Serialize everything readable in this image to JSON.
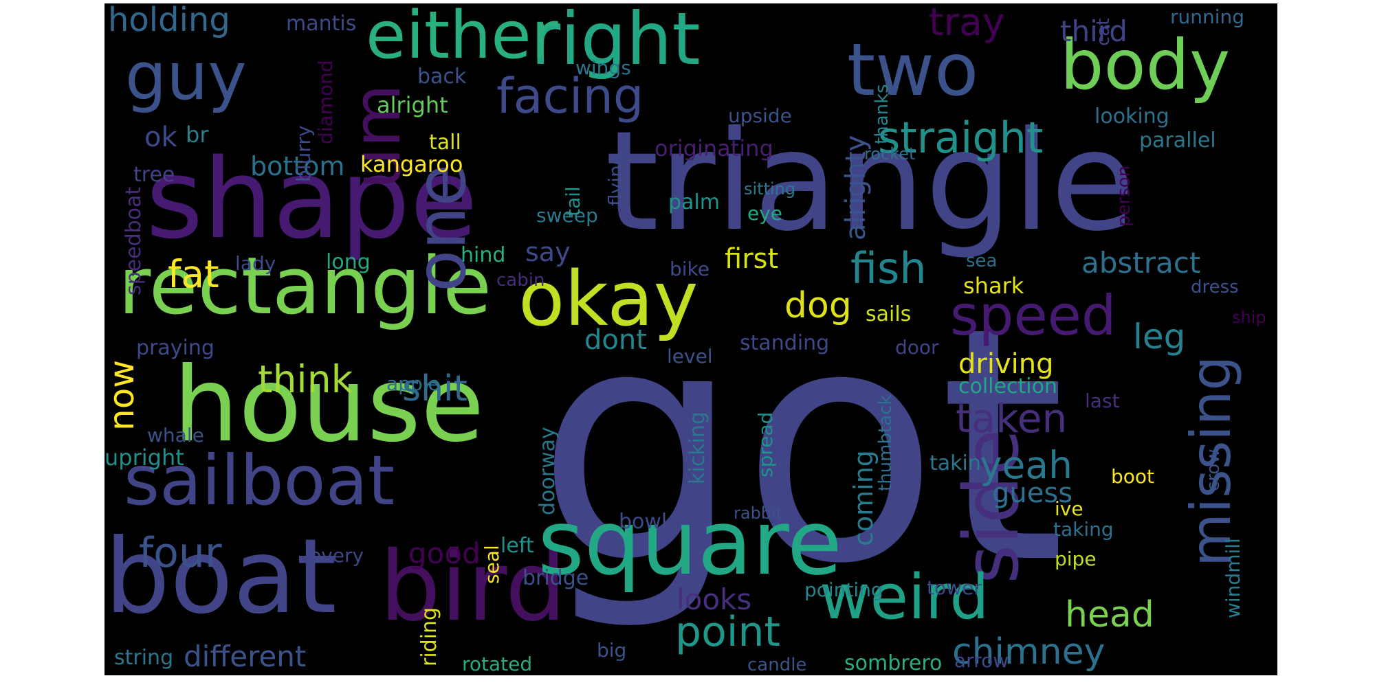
{
  "words": [
    {
      "t": "got",
      "c": "#414487"
    },
    {
      "t": "triangle",
      "c": "#414487"
    },
    {
      "t": "shape",
      "c": "#471a72"
    },
    {
      "t": "house",
      "c": "#7ad151"
    },
    {
      "t": "boat",
      "c": "#414487"
    },
    {
      "t": "bird",
      "c": "#440f5c"
    },
    {
      "t": "square",
      "c": "#22a884"
    },
    {
      "t": "rectangle",
      "c": "#7ad151"
    },
    {
      "t": "okay",
      "c": "#c2df23"
    },
    {
      "t": "sailboat",
      "c": "#414487"
    },
    {
      "t": "one",
      "c": "#414487"
    },
    {
      "t": "right",
      "c": "#22a884"
    },
    {
      "t": "either",
      "c": "#2ab07f"
    },
    {
      "t": "two",
      "c": "#3b528b"
    },
    {
      "t": "body",
      "c": "#6ece58"
    },
    {
      "t": "guy",
      "c": "#3b528b"
    },
    {
      "t": "um",
      "c": "#440f5c"
    },
    {
      "t": "side",
      "c": "#46307e"
    },
    {
      "t": "weird",
      "c": "#1fa188"
    },
    {
      "t": "speed",
      "c": "#471a72"
    },
    {
      "t": "missing",
      "c": "#3b528b"
    },
    {
      "t": "facing",
      "c": "#3e4a89"
    },
    {
      "t": "straight",
      "c": "#21918c"
    },
    {
      "t": "fish",
      "c": "#25858e"
    },
    {
      "t": "four",
      "c": "#3b528b"
    },
    {
      "t": "point",
      "c": "#1f988b"
    },
    {
      "t": "chimney",
      "c": "#2c718e"
    },
    {
      "t": "taken",
      "c": "#46307e"
    },
    {
      "t": "think",
      "c": "#a5db36"
    },
    {
      "t": "shit",
      "c": "#31688e"
    },
    {
      "t": "yeah",
      "c": "#2a788e"
    },
    {
      "t": "head",
      "c": "#7ad151"
    },
    {
      "t": "dog",
      "c": "#dde318"
    },
    {
      "t": "fat",
      "c": "#fde725"
    },
    {
      "t": "abstract",
      "c": "#2c718e"
    },
    {
      "t": "leg",
      "c": "#26828e"
    },
    {
      "t": "driving",
      "c": "#e5e419"
    },
    {
      "t": "tray",
      "c": "#440154"
    },
    {
      "t": "holding",
      "c": "#31688e"
    },
    {
      "t": "third",
      "c": "#404387"
    },
    {
      "t": "ok",
      "c": "#3e4a89"
    },
    {
      "t": "br",
      "c": "#26828e"
    },
    {
      "t": "bottom",
      "c": "#2d708e"
    },
    {
      "t": "first",
      "c": "#d8e219"
    },
    {
      "t": "now",
      "c": "#fde725"
    },
    {
      "t": "dont",
      "c": "#24878e"
    },
    {
      "t": "good",
      "c": "#440154"
    },
    {
      "t": "looks",
      "c": "#472f7d"
    },
    {
      "t": "different",
      "c": "#3b528b"
    },
    {
      "t": "guess",
      "c": "#2c718e"
    },
    {
      "t": "coming",
      "c": "#287c8e"
    },
    {
      "t": "say",
      "c": "#3e4a89"
    },
    {
      "t": "alrighty",
      "c": "#3b528b"
    },
    {
      "t": "collection",
      "c": "#22a884"
    },
    {
      "t": "mantis",
      "c": "#3e4a89"
    },
    {
      "t": "wings",
      "c": "#2a788e"
    },
    {
      "t": "back",
      "c": "#3b528b"
    },
    {
      "t": "alright",
      "c": "#63cb5f"
    },
    {
      "t": "upside",
      "c": "#3b528b"
    },
    {
      "t": "looking",
      "c": "#2c718e"
    },
    {
      "t": "running",
      "c": "#30698e"
    },
    {
      "t": "originating",
      "c": "#482071"
    },
    {
      "t": "tall",
      "c": "#dde318"
    },
    {
      "t": "kangaroo",
      "c": "#fde725"
    },
    {
      "t": "tree",
      "c": "#404387"
    },
    {
      "t": "parallel",
      "c": "#2a788e"
    },
    {
      "t": "rocket",
      "c": "#2d708e"
    },
    {
      "t": "sitting",
      "c": "#2a788e"
    },
    {
      "t": "palm",
      "c": "#20928c"
    },
    {
      "t": "eye",
      "c": "#22a884"
    },
    {
      "t": "sweep",
      "c": "#287c8e"
    },
    {
      "t": "tail",
      "c": "#20928c"
    },
    {
      "t": "flying",
      "c": "#3e4a89"
    },
    {
      "t": "blurry",
      "c": "#3e4a89"
    },
    {
      "t": "diamond",
      "c": "#440154"
    },
    {
      "t": "thanks",
      "c": "#25858e"
    },
    {
      "t": "cat",
      "c": "#404387"
    },
    {
      "t": "speedboat",
      "c": "#472d7b"
    },
    {
      "t": "lady",
      "c": "#3e4a89"
    },
    {
      "t": "long",
      "c": "#22a884"
    },
    {
      "t": "hind",
      "c": "#2ab07f"
    },
    {
      "t": "cabin",
      "c": "#472d7b"
    },
    {
      "t": "bike",
      "c": "#3e4a89"
    },
    {
      "t": "sea",
      "c": "#2c718e"
    },
    {
      "t": "shark",
      "c": "#e5e419"
    },
    {
      "t": "dress",
      "c": "#3b528b"
    },
    {
      "t": "ship",
      "c": "#440154"
    },
    {
      "t": "sails",
      "c": "#d2e21b"
    },
    {
      "t": "standing",
      "c": "#3f4889"
    },
    {
      "t": "door",
      "c": "#404387"
    },
    {
      "t": "level",
      "c": "#3b528b"
    },
    {
      "t": "praying",
      "c": "#3e4a89"
    },
    {
      "t": "apple",
      "c": "#2c718e"
    },
    {
      "t": "person",
      "c": "#440154"
    },
    {
      "t": "last",
      "c": "#472f7d"
    },
    {
      "t": "whale",
      "c": "#3b528b"
    },
    {
      "t": "upright",
      "c": "#21918c"
    },
    {
      "t": "doorway",
      "c": "#2a788e"
    },
    {
      "t": "kicking",
      "c": "#2a788e"
    },
    {
      "t": "thumbtack",
      "c": "#2c718e"
    },
    {
      "t": "spread",
      "c": "#20928c"
    },
    {
      "t": "takin",
      "c": "#2a788e"
    },
    {
      "t": "boot",
      "c": "#fde725"
    },
    {
      "t": "crow",
      "c": "#3b528b"
    },
    {
      "t": "ive",
      "c": "#e5e419"
    },
    {
      "t": "rabbit",
      "c": "#3b528b"
    },
    {
      "t": "bowl",
      "c": "#3e4a89"
    },
    {
      "t": "taking",
      "c": "#2c718e"
    },
    {
      "t": "every",
      "c": "#3f4889"
    },
    {
      "t": "left",
      "c": "#21918c"
    },
    {
      "t": "seal",
      "c": "#fde725"
    },
    {
      "t": "pipe",
      "c": "#c2df23"
    },
    {
      "t": "bridge",
      "c": "#3b528b"
    },
    {
      "t": "windmill",
      "c": "#287c8e"
    },
    {
      "t": "pointing",
      "c": "#25858e"
    },
    {
      "t": "tower",
      "c": "#3e4a89"
    },
    {
      "t": "riding",
      "c": "#dde318"
    },
    {
      "t": "string",
      "c": "#2a788e"
    },
    {
      "t": "big",
      "c": "#3b528b"
    },
    {
      "t": "rotated",
      "c": "#25ab82"
    },
    {
      "t": "candle",
      "c": "#3b528b"
    },
    {
      "t": "sombrero",
      "c": "#2ab07f"
    },
    {
      "t": "arrow",
      "c": "#3f4889"
    }
  ]
}
